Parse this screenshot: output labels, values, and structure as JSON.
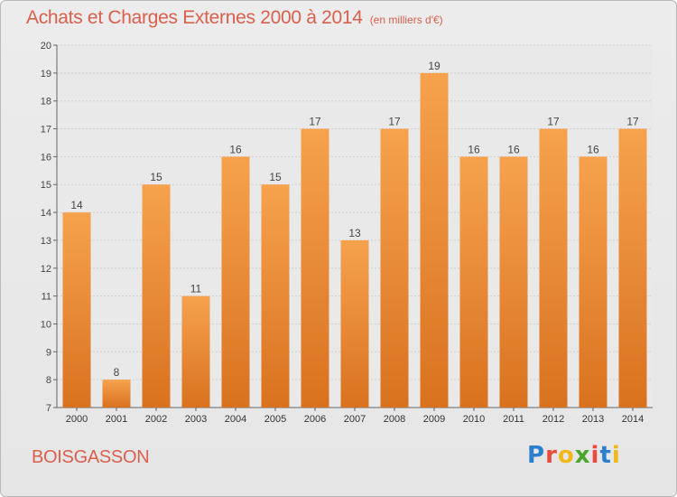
{
  "title": "Achats et Charges Externes 2000 à 2014",
  "subtitle": "(en milliers d'€)",
  "commune": "BOISGASSON",
  "logo": {
    "letters": [
      "P",
      "r",
      "o",
      "x",
      "i",
      "t",
      "i"
    ],
    "colors": [
      "#2a7fcf",
      "#e94b3c",
      "#f1b81a",
      "#4aa52e",
      "#e94b3c",
      "#2a7fcf",
      "#f1b81a"
    ]
  },
  "chart_data": {
    "type": "bar",
    "title": "Achats et Charges Externes 2000 à 2014",
    "subtitle": "(en milliers d'€)",
    "categories": [
      "2000",
      "2001",
      "2002",
      "2003",
      "2004",
      "2005",
      "2006",
      "2007",
      "2008",
      "2009",
      "2010",
      "2011",
      "2012",
      "2013",
      "2014"
    ],
    "values": [
      14,
      8,
      15,
      11,
      16,
      15,
      17,
      13,
      17,
      19,
      16,
      16,
      17,
      16,
      17
    ],
    "ylim": [
      7,
      20
    ],
    "yticks": [
      7,
      8,
      9,
      10,
      11,
      12,
      13,
      14,
      15,
      16,
      17,
      18,
      19,
      20
    ],
    "grid": true,
    "bar_color_top": "#f6a24d",
    "bar_color_bottom": "#d9721f"
  }
}
